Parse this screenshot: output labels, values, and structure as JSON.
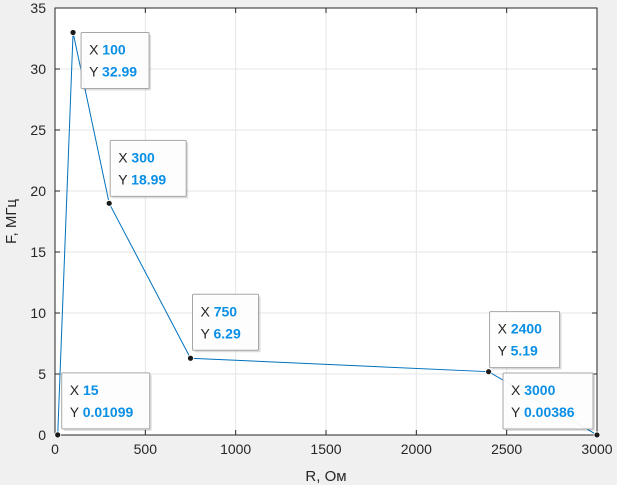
{
  "chart_data": {
    "type": "line",
    "xlabel": "R, Ом",
    "ylabel": "F, МГц",
    "xlim": [
      0,
      3000
    ],
    "ylim": [
      0,
      35
    ],
    "xticks": [
      0,
      500,
      1000,
      1500,
      2000,
      2500,
      3000
    ],
    "yticks": [
      0,
      5,
      10,
      15,
      20,
      25,
      30,
      35
    ],
    "grid": true,
    "series": [
      {
        "x": [
          15,
          100,
          300,
          750,
          2400,
          3000
        ],
        "y": [
          0.01099,
          32.99,
          18.99,
          6.29,
          5.19,
          0.00386
        ]
      }
    ],
    "datatips": [
      {
        "x_label": "X",
        "x_value": "15",
        "y_label": "Y",
        "y_value": "0.01099"
      },
      {
        "x_label": "X",
        "x_value": "100",
        "y_label": "Y",
        "y_value": "32.99"
      },
      {
        "x_label": "X",
        "x_value": "300",
        "y_label": "Y",
        "y_value": "18.99"
      },
      {
        "x_label": "X",
        "x_value": "750",
        "y_label": "Y",
        "y_value": "6.29"
      },
      {
        "x_label": "X",
        "x_value": "2400",
        "y_label": "Y",
        "y_value": "5.19"
      },
      {
        "x_label": "X",
        "x_value": "3000",
        "y_label": "Y",
        "y_value": "0.00386"
      }
    ],
    "colors": {
      "figure_bg": "#f0f0f0",
      "axes_bg": "#ffffff",
      "line": "#0072bd",
      "grid": "#e6e6e6",
      "axis": "#262626",
      "tip_value": "#0a8fe6",
      "tip_label": "#262626",
      "marker": "#1a1a1a"
    }
  }
}
